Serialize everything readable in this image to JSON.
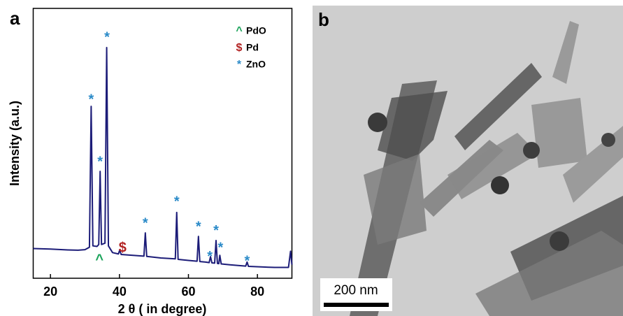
{
  "chart_data": {
    "type": "line",
    "panel_label": "a",
    "x_label": "2 θ ( in degree)",
    "y_label": "Intensity (a.u.)",
    "color": "#1c1c78",
    "x": [
      15,
      20,
      25,
      28,
      30,
      31.3,
      31.8,
      32.3,
      33.5,
      34.0,
      34.4,
      34.8,
      35.8,
      36.3,
      36.8,
      38,
      39.7,
      40.1,
      40.5,
      45,
      47.1,
      47.5,
      47.9,
      52,
      56.2,
      56.6,
      57,
      60,
      62.5,
      62.9,
      63.3,
      65,
      66,
      66.4,
      66.8,
      67.6,
      68,
      68.4,
      68.8,
      69.1,
      69.5,
      72,
      76.6,
      77,
      77.4,
      85,
      89,
      89.6,
      90
    ],
    "values": [
      11,
      10.8,
      10.5,
      10.4,
      10.6,
      11.5,
      63.7,
      12,
      11.8,
      12.5,
      39.6,
      12.5,
      13,
      85.5,
      12,
      9.5,
      9,
      10.5,
      8.8,
      8.4,
      8.2,
      16.8,
      8.1,
      7.5,
      7.2,
      24.4,
      7,
      6.6,
      6.3,
      15.5,
      6.2,
      6,
      5.8,
      8,
      5.7,
      5.6,
      14,
      5.5,
      5.4,
      8.5,
      5.3,
      5,
      4.5,
      6,
      4.4,
      4,
      4,
      10,
      5
    ],
    "xlim": [
      15,
      90
    ],
    "xticks": [
      20,
      40,
      60,
      80
    ],
    "ylim": [
      0,
      100
    ],
    "legend": [
      {
        "marker": "^",
        "label": "PdO",
        "color": "#1aa35a"
      },
      {
        "marker": "$",
        "label": "Pd",
        "color": "#b22222"
      },
      {
        "marker": "*",
        "label": "ZnO",
        "color": "#2a8ac8"
      }
    ],
    "annotations": [
      {
        "text": "*",
        "x": 31.8,
        "y": 66,
        "color": "#2a8ac8"
      },
      {
        "text": "*",
        "x": 36.4,
        "y": 89,
        "color": "#2a8ac8"
      },
      {
        "text": "*",
        "x": 34.4,
        "y": 43,
        "color": "#2a8ac8"
      },
      {
        "text": "*",
        "x": 47.5,
        "y": 20.2,
        "color": "#2a8ac8"
      },
      {
        "text": "*",
        "x": 56.6,
        "y": 28.2,
        "color": "#2a8ac8"
      },
      {
        "text": "*",
        "x": 62.9,
        "y": 18.9,
        "color": "#2a8ac8"
      },
      {
        "text": "*",
        "x": 66.2,
        "y": 7.8,
        "color": "#2a8ac8"
      },
      {
        "text": "*",
        "x": 68,
        "y": 17.4,
        "color": "#2a8ac8"
      },
      {
        "text": "*",
        "x": 69.3,
        "y": 11.1,
        "color": "#2a8ac8"
      },
      {
        "text": "*",
        "x": 77,
        "y": 6.2,
        "color": "#2a8ac8"
      },
      {
        "text": "$",
        "x": 40.9,
        "y": 11.1,
        "color": "#b22222"
      },
      {
        "text": "^",
        "x": 34.2,
        "y": 6.7,
        "color": "#1aa35a"
      }
    ]
  },
  "image_panel": {
    "label": "b",
    "scale_bar": "200 nm"
  }
}
